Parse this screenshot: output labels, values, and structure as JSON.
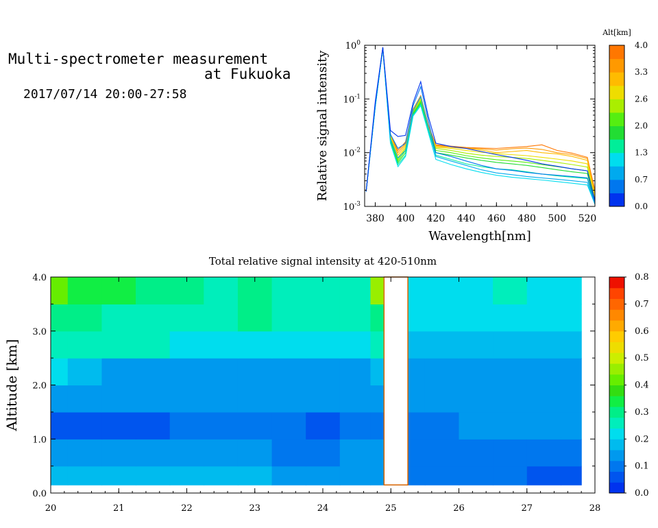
{
  "header": {
    "title_line1": "Multi-spectrometer measurement",
    "title_line2": "at Fukuoka",
    "datetime": "2017/07/14 20:00-27:58"
  },
  "chart_data": [
    {
      "type": "line",
      "xlabel": "Wavelength[nm]",
      "ylabel": "Relative signal intensity",
      "yscale": "log",
      "xlim": [
        373,
        525
      ],
      "ylim": [
        0.001,
        1
      ],
      "x_ticks": [
        "380",
        "400",
        "420",
        "440",
        "460",
        "480",
        "500",
        "520"
      ],
      "y_ticks": [
        {
          "base": "10",
          "exp": "-3"
        },
        {
          "base": "10",
          "exp": "-2"
        },
        {
          "base": "10",
          "exp": "-1"
        },
        {
          "base": "10",
          "exp": "0"
        }
      ],
      "colorbar": {
        "title": "Alt[km]",
        "tick_labels": [
          "0.0",
          "0.7",
          "1.3",
          "2.0",
          "2.6",
          "3.3",
          "4.0"
        ],
        "colors": [
          "#0033ee",
          "#0077ee",
          "#00aaee",
          "#00ddee",
          "#00ee99",
          "#22dd33",
          "#55ee11",
          "#aaee00",
          "#eedd00",
          "#ffbb00",
          "#ff9900",
          "#ff7700"
        ]
      },
      "x": [
        374,
        380,
        385,
        390,
        395,
        400,
        405,
        410,
        415,
        420,
        430,
        440,
        450,
        460,
        470,
        480,
        490,
        500,
        510,
        520,
        525
      ],
      "series": [
        {
          "color": "#0033ee",
          "values": [
            0.0019,
            0.09,
            0.92,
            0.026,
            0.02,
            0.021,
            0.085,
            0.21,
            0.048,
            0.015,
            0.013,
            0.012,
            0.0105,
            0.0092,
            0.0082,
            0.0072,
            0.0062,
            0.0056,
            0.005,
            0.0046,
            0.0013
          ]
        },
        {
          "color": "#0077ee",
          "values": [
            0.0019,
            0.08,
            0.9,
            0.022,
            0.012,
            0.015,
            0.075,
            0.17,
            0.04,
            0.01,
            0.0085,
            0.007,
            0.0058,
            0.005,
            0.0047,
            0.0043,
            0.004,
            0.0038,
            0.0036,
            0.0034,
            0.0012
          ]
        },
        {
          "color": "#00aaee",
          "values": [
            0.0019,
            0.075,
            0.88,
            0.018,
            0.008,
            0.011,
            0.06,
            0.11,
            0.03,
            0.0085,
            0.007,
            0.0058,
            0.0048,
            0.0042,
            0.0039,
            0.0036,
            0.0034,
            0.0032,
            0.003,
            0.0028,
            0.0011
          ]
        },
        {
          "color": "#00ddee",
          "values": [
            0.0019,
            0.07,
            0.87,
            0.015,
            0.0055,
            0.0085,
            0.048,
            0.075,
            0.024,
            0.0075,
            0.006,
            0.005,
            0.0043,
            0.0038,
            0.0035,
            0.0033,
            0.0031,
            0.0029,
            0.0027,
            0.0025,
            0.0011
          ]
        },
        {
          "color": "#00ee99",
          "values": [
            0.0019,
            0.072,
            0.87,
            0.016,
            0.006,
            0.009,
            0.05,
            0.08,
            0.026,
            0.009,
            0.0075,
            0.0062,
            0.0055,
            0.005,
            0.0048,
            0.0044,
            0.004,
            0.0037,
            0.0035,
            0.0033,
            0.0011
          ]
        },
        {
          "color": "#22dd33",
          "values": [
            0.0019,
            0.072,
            0.88,
            0.017,
            0.0065,
            0.01,
            0.052,
            0.085,
            0.027,
            0.01,
            0.009,
            0.008,
            0.0072,
            0.0066,
            0.0062,
            0.0058,
            0.0053,
            0.0048,
            0.0044,
            0.0041,
            0.0012
          ]
        },
        {
          "color": "#55ee11",
          "values": [
            0.0019,
            0.073,
            0.88,
            0.018,
            0.007,
            0.011,
            0.054,
            0.09,
            0.028,
            0.011,
            0.01,
            0.0088,
            0.008,
            0.0074,
            0.007,
            0.0066,
            0.006,
            0.0055,
            0.005,
            0.0046,
            0.0012
          ]
        },
        {
          "color": "#aaee00",
          "values": [
            0.0019,
            0.074,
            0.89,
            0.019,
            0.0075,
            0.012,
            0.056,
            0.095,
            0.029,
            0.012,
            0.011,
            0.0098,
            0.009,
            0.0085,
            0.0082,
            0.0078,
            0.0072,
            0.0066,
            0.006,
            0.0054,
            0.0013
          ]
        },
        {
          "color": "#eedd00",
          "values": [
            0.0019,
            0.075,
            0.89,
            0.02,
            0.008,
            0.013,
            0.058,
            0.1,
            0.03,
            0.0125,
            0.012,
            0.011,
            0.0102,
            0.0096,
            0.0092,
            0.0088,
            0.0082,
            0.0076,
            0.007,
            0.0062,
            0.0014
          ]
        },
        {
          "color": "#ffbb00",
          "values": [
            0.0019,
            0.076,
            0.9,
            0.021,
            0.009,
            0.014,
            0.06,
            0.105,
            0.031,
            0.013,
            0.0125,
            0.012,
            0.0112,
            0.01,
            0.0105,
            0.011,
            0.01,
            0.0095,
            0.0085,
            0.0072,
            0.0016
          ]
        },
        {
          "color": "#ff9900",
          "values": [
            0.0019,
            0.077,
            0.9,
            0.022,
            0.01,
            0.015,
            0.062,
            0.11,
            0.032,
            0.0135,
            0.013,
            0.0122,
            0.0118,
            0.0112,
            0.0118,
            0.0122,
            0.0115,
            0.01,
            0.0092,
            0.0078,
            0.0018
          ]
        },
        {
          "color": "#ff7700",
          "values": [
            0.0019,
            0.078,
            0.91,
            0.022,
            0.011,
            0.016,
            0.064,
            0.115,
            0.033,
            0.014,
            0.0132,
            0.0125,
            0.0122,
            0.012,
            0.0125,
            0.013,
            0.014,
            0.011,
            0.0098,
            0.0082,
            0.002
          ]
        }
      ]
    },
    {
      "type": "heatmap",
      "title": "Total relative signal intensity at 420-510nm",
      "ylabel": "Altitude [km]",
      "xlim": [
        20,
        28
      ],
      "ylim": [
        0,
        4
      ],
      "x_ticks": [
        "20",
        "21",
        "22",
        "23",
        "24",
        "25",
        "26",
        "27",
        "28"
      ],
      "y_ticks": [
        "0.0",
        "1.0",
        "2.0",
        "3.0",
        "4.0"
      ],
      "data_x_range": [
        20.0,
        27.8
      ],
      "data_y_range": [
        0.15,
        4.0
      ],
      "gap_x_range": [
        24.9,
        25.25
      ],
      "x": [
        20.0,
        20.5,
        21.0,
        21.5,
        22.0,
        22.5,
        23.0,
        23.5,
        24.0,
        24.5,
        24.9,
        25.25,
        25.75,
        26.25,
        26.75,
        27.25,
        27.75
      ],
      "y": [
        0.25,
        0.75,
        1.25,
        1.75,
        2.25,
        2.75,
        3.25,
        3.75
      ],
      "values": [
        [
          0.17,
          0.17,
          0.17,
          0.17,
          0.18,
          0.17,
          0.17,
          0.16,
          0.15,
          0.15,
          0.15,
          0.09,
          0.09,
          0.09,
          0.09,
          0.08,
          0.08
        ],
        [
          0.13,
          0.13,
          0.13,
          0.13,
          0.13,
          0.12,
          0.12,
          0.11,
          0.11,
          0.12,
          0.12,
          0.1,
          0.1,
          0.1,
          0.1,
          0.1,
          0.1
        ],
        [
          0.08,
          0.08,
          0.08,
          0.08,
          0.11,
          0.11,
          0.11,
          0.09,
          0.08,
          0.1,
          0.11,
          0.11,
          0.11,
          0.12,
          0.12,
          0.12,
          0.12
        ],
        [
          0.13,
          0.13,
          0.13,
          0.13,
          0.13,
          0.12,
          0.12,
          0.13,
          0.12,
          0.13,
          0.13,
          0.12,
          0.13,
          0.13,
          0.14,
          0.13,
          0.13
        ],
        [
          0.22,
          0.19,
          0.16,
          0.16,
          0.16,
          0.16,
          0.16,
          0.16,
          0.16,
          0.16,
          0.17,
          0.15,
          0.15,
          0.15,
          0.16,
          0.15,
          0.15
        ],
        [
          0.26,
          0.25,
          0.25,
          0.24,
          0.23,
          0.22,
          0.23,
          0.22,
          0.21,
          0.22,
          0.25,
          0.18,
          0.18,
          0.18,
          0.18,
          0.18,
          0.18
        ],
        [
          0.32,
          0.28,
          0.27,
          0.27,
          0.27,
          0.27,
          0.3,
          0.26,
          0.26,
          0.26,
          0.28,
          0.2,
          0.2,
          0.2,
          0.21,
          0.2,
          0.2
        ],
        [
          0.42,
          0.35,
          0.33,
          0.32,
          0.28,
          0.26,
          0.29,
          0.27,
          0.27,
          0.26,
          0.45,
          0.21,
          0.22,
          0.22,
          0.24,
          0.22,
          0.22
        ]
      ],
      "colorbar": {
        "tick_labels": [
          "0.0",
          "0.1",
          "0.2",
          "0.3",
          "0.4",
          "0.5",
          "0.6",
          "0.7",
          "0.8"
        ],
        "range": [
          0,
          0.8
        ],
        "colors": [
          "#0033ee",
          "#0055ee",
          "#0077ee",
          "#0099ee",
          "#00bbee",
          "#00ddee",
          "#00eebb",
          "#00ee88",
          "#11ee44",
          "#33dd11",
          "#66ee00",
          "#99ee00",
          "#ccee00",
          "#eedd00",
          "#ffcc00",
          "#ffaa00",
          "#ff8800",
          "#ff6600",
          "#ff4400",
          "#ee1100"
        ]
      }
    }
  ]
}
